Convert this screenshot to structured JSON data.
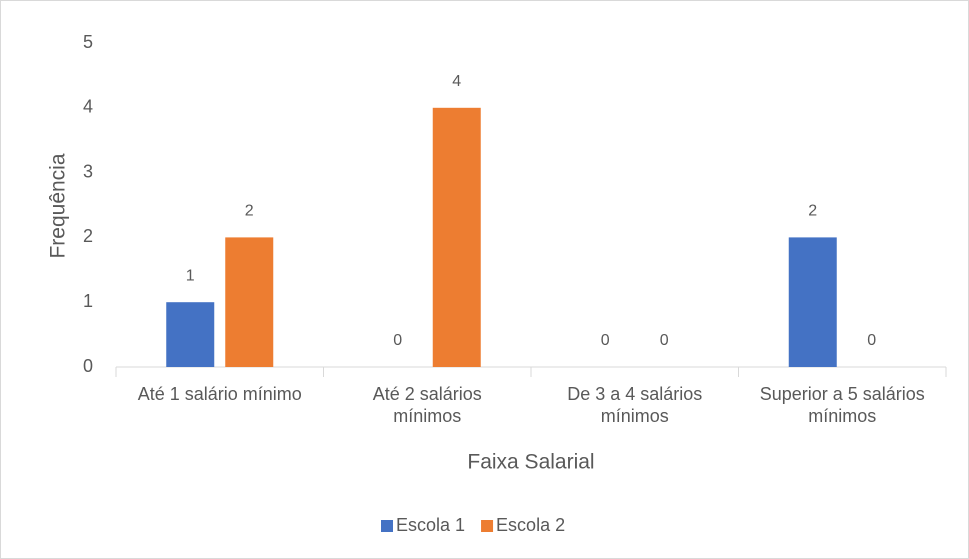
{
  "chart_data": {
    "type": "bar",
    "xlabel": "Faixa Salarial",
    "ylabel": "Frequência",
    "categories": [
      "Até 1 salário mínimo",
      "Até 2 salários mínimos",
      "De 3 a 4 salários mínimos",
      "Superior a 5 salários mínimos"
    ],
    "series": [
      {
        "name": "Escola 1",
        "color": "#4472c4",
        "values": [
          1,
          0,
          0,
          2
        ]
      },
      {
        "name": "Escola 2",
        "color": "#ed7d31",
        "values": [
          2,
          4,
          0,
          0
        ]
      }
    ],
    "ylim": [
      0,
      5
    ],
    "yticks": [
      0,
      1,
      2,
      3,
      4,
      5
    ],
    "grid": false,
    "legend": "bottom"
  }
}
